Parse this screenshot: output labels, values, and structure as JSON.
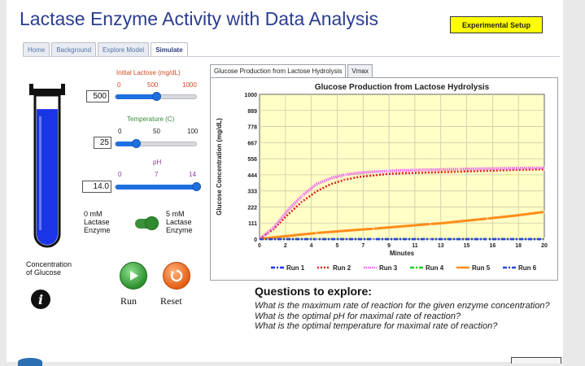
{
  "title": "Lactase Enzyme Activity with Data Analysis",
  "setup_button": "Experimental Setup",
  "tabs": [
    {
      "label": "Home",
      "active": false
    },
    {
      "label": "Background",
      "active": false
    },
    {
      "label": "Explore Model",
      "active": false
    },
    {
      "label": "Simulate",
      "active": true
    }
  ],
  "controls": {
    "lactose": {
      "title": "Initial Lactose (mg/dL)",
      "min": "0",
      "mid": "500",
      "max": "1000",
      "value": "500",
      "fraction": 0.5
    },
    "temperature": {
      "title": "Temperature (C)",
      "min": "0",
      "mid": "50",
      "max": "100",
      "value": "25",
      "fraction": 0.25
    },
    "ph": {
      "title": "pH",
      "min": "0",
      "mid": "7",
      "max": "14",
      "value": "14.0",
      "fraction": 1.0
    },
    "enzyme_left": "0 mM\nLactase\nEnzyme",
    "enzyme_right": "5 mM\nLactase\nEnzyme",
    "enzyme_toggle_on": true,
    "concentration_label": "Concentration\nof Glucose",
    "glucose_fill_fraction": 0.9,
    "run_label": "Run",
    "reset_label": "Reset"
  },
  "colors": {
    "accent": "#1e6fe0",
    "setup_button_bg": "#ffff00",
    "plot_bg": "#ffffc6",
    "tube_fill": "#1a35e6",
    "run_green": "#2d8f2d",
    "reset_orange": "#e45e14"
  },
  "graph_tabs": [
    {
      "label": "Glucose Production from Lactose Hydrolysis",
      "active": true
    },
    {
      "label": "Vmax",
      "active": false
    }
  ],
  "chart_data": {
    "type": "line",
    "title": "Glucose Production from Lactose Hydrolysis",
    "xlabel": "Minutes",
    "ylabel": "Glucose Concentration (mg/dL)",
    "xlim": [
      0,
      20
    ],
    "ylim": [
      0,
      1000
    ],
    "x_ticks": [
      "0",
      "2",
      "4",
      "5",
      "7",
      "9",
      "11",
      "13",
      "15",
      "16",
      "18",
      "20"
    ],
    "y_ticks": [
      "0",
      "111",
      "222",
      "333",
      "444",
      "556",
      "667",
      "778",
      "889",
      "1000"
    ],
    "grid": true,
    "legend_position": "bottom",
    "series": [
      {
        "name": "Run 1",
        "color": "#1a35e6",
        "dash": "dashdot",
        "marker": "1",
        "x": [
          0,
          2,
          4,
          6,
          8,
          10,
          12,
          14,
          16,
          18,
          20
        ],
        "y": [
          0,
          0,
          0,
          0,
          0,
          0,
          0,
          0,
          0,
          0,
          0
        ]
      },
      {
        "name": "Run 2",
        "color": "#e01e1e",
        "dash": "dot",
        "marker": "2",
        "x": [
          0,
          1,
          2,
          3,
          4,
          5,
          6,
          7,
          8,
          9,
          10,
          12,
          14,
          16,
          18,
          20
        ],
        "y": [
          0,
          70,
          170,
          260,
          330,
          380,
          410,
          430,
          440,
          450,
          455,
          460,
          466,
          472,
          478,
          482
        ]
      },
      {
        "name": "Run 3",
        "color": "#ee66ee",
        "dash": "dense",
        "marker": "3",
        "x": [
          0,
          1,
          2,
          3,
          4,
          5,
          6,
          7,
          8,
          9,
          10,
          12,
          14,
          16,
          18,
          20
        ],
        "y": [
          0,
          80,
          200,
          300,
          380,
          420,
          445,
          458,
          465,
          470,
          474,
          479,
          483,
          487,
          490,
          492
        ]
      },
      {
        "name": "Run 4",
        "color": "#22cc22",
        "dash": "dashdot",
        "marker": "4",
        "x": [
          0,
          2,
          4,
          6,
          8,
          10,
          12,
          14,
          16,
          18,
          20
        ],
        "y": [
          0,
          0,
          0,
          0,
          0,
          0,
          0,
          0,
          0,
          0,
          0
        ]
      },
      {
        "name": "Run 5",
        "color": "#ff8c1a",
        "dash": "solid",
        "marker": "5",
        "x": [
          0,
          1,
          2,
          3,
          4,
          5,
          6,
          7,
          8,
          9,
          10,
          11,
          12,
          13,
          14,
          15,
          16,
          17,
          18,
          19,
          20
        ],
        "y": [
          0,
          12,
          22,
          32,
          42,
          50,
          58,
          65,
          72,
          80,
          88,
          96,
          104,
          112,
          122,
          132,
          142,
          152,
          163,
          175,
          188
        ]
      },
      {
        "name": "Run 6",
        "color": "#2a46d6",
        "dash": "dashdot",
        "marker": "6",
        "x": [
          0,
          2,
          4,
          6,
          8,
          10,
          12,
          14,
          16,
          18,
          20
        ],
        "y": [
          0,
          0,
          0,
          0,
          0,
          0,
          0,
          0,
          0,
          0,
          0
        ]
      }
    ]
  },
  "questions": {
    "heading": "Questions to explore:",
    "items": [
      "What is the maximum rate of reaction for the given enzyme concentration?",
      "What is the optimal pH for maximal rate of reaction?",
      "What is the optimal temperature for maximal rate of reaction?"
    ]
  }
}
